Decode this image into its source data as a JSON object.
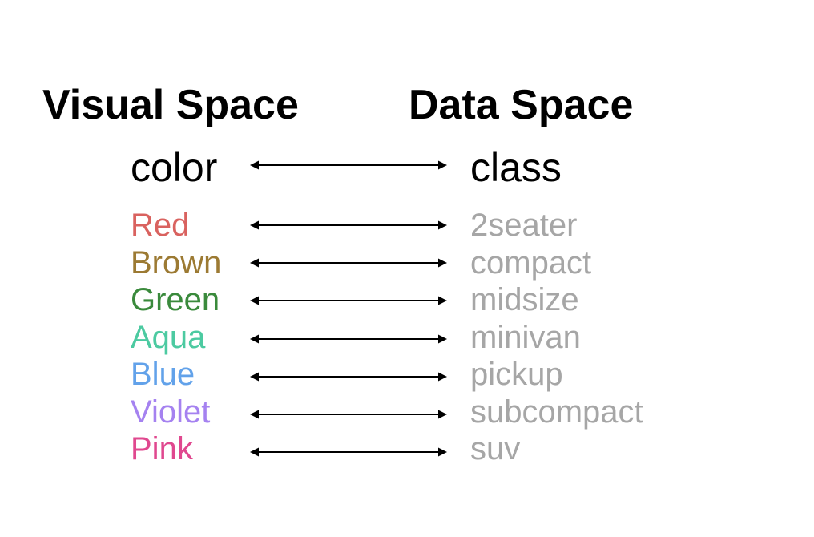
{
  "headers": {
    "visual": "Visual Space",
    "data": "Data Space"
  },
  "attributes": {
    "visual": "color",
    "data": "class"
  },
  "mappings": [
    {
      "color_name": "Red",
      "color": "#d9625f",
      "class": "2seater"
    },
    {
      "color_name": "Brown",
      "color": "#9c7a33",
      "color_alt": "",
      "class": "compact"
    },
    {
      "color_name": "Green",
      "color": "#3a8a3c",
      "class": "midsize"
    },
    {
      "color_name": "Aqua",
      "color": "#4ccaa1",
      "class": "minivan"
    },
    {
      "color_name": "Blue",
      "color": "#62a2ea",
      "class": "pickup"
    },
    {
      "color_name": "Violet",
      "color": "#a582f0",
      "class": "subcompact"
    },
    {
      "color_name": "Pink",
      "color": "#e0488f",
      "class": "suv"
    }
  ],
  "data_label_color": "#a6a6a6"
}
